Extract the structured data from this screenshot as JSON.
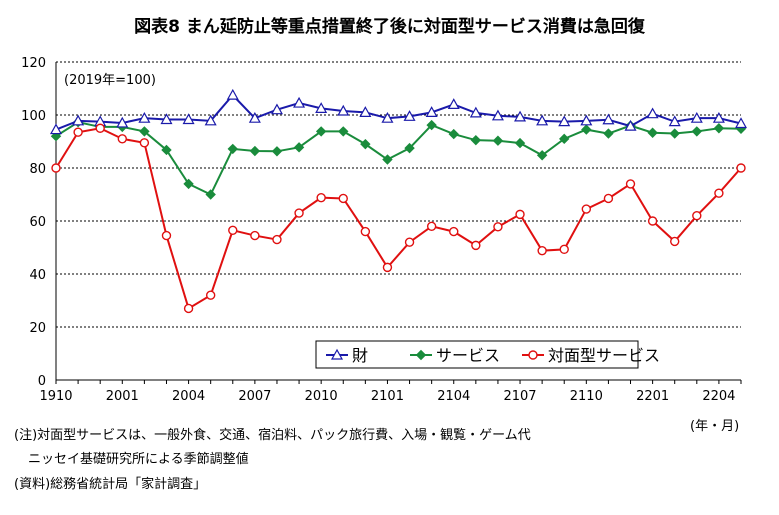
{
  "chart_data": {
    "type": "line",
    "title": "図表8 まん延防止等重点措置終了後に対面型サービス消費は急回復",
    "base_label": "(2019年=100)",
    "x_unit": "(年・月)",
    "ylim": [
      0,
      120
    ],
    "yticks": [
      0,
      20,
      40,
      60,
      80,
      100,
      120
    ],
    "grid": true,
    "legend_position": "bottom-right",
    "x": [
      "1910",
      "1911",
      "1912",
      "2001",
      "2002",
      "2003",
      "2004",
      "2005",
      "2006",
      "2007",
      "2008",
      "2009",
      "2010",
      "2011",
      "2012",
      "2101",
      "2102",
      "2103",
      "2104",
      "2105",
      "2106",
      "2107",
      "2108",
      "2109",
      "2110",
      "2111",
      "2112",
      "2201",
      "2202",
      "2203",
      "2204",
      "2205"
    ],
    "xtick_labels": [
      "1910",
      "2001",
      "2004",
      "2007",
      "2010",
      "2101",
      "2104",
      "2107",
      "2110",
      "2201",
      "2204"
    ],
    "series": [
      {
        "name": "財",
        "color": "#1a1aaa",
        "marker": "triangle",
        "values": [
          94.5,
          97.8,
          97.5,
          97.0,
          98.8,
          98.3,
          98.3,
          97.8,
          107.5,
          98.8,
          102.0,
          104.5,
          102.5,
          101.5,
          101.0,
          98.8,
          99.5,
          101.0,
          104.0,
          100.8,
          99.7,
          99.3,
          97.8,
          97.5,
          97.8,
          98.2,
          95.8,
          100.5,
          97.5,
          98.8,
          98.8,
          96.8
        ]
      },
      {
        "name": "サービス",
        "color": "#1a8c3c",
        "marker": "diamond",
        "values": [
          92.0,
          97.3,
          95.5,
          95.5,
          93.8,
          86.8,
          74.0,
          70.0,
          87.2,
          86.4,
          86.3,
          87.8,
          93.8,
          93.8,
          89.0,
          83.2,
          87.5,
          96.2,
          92.8,
          90.5,
          90.3,
          89.4,
          84.8,
          91.0,
          94.5,
          93.0,
          96.0,
          93.3,
          93.0,
          93.8,
          95.0,
          94.8
        ]
      },
      {
        "name": "対面型サービス",
        "color": "#e01010",
        "marker": "circle",
        "values": [
          80.0,
          93.5,
          95.0,
          91.0,
          89.5,
          54.5,
          27.0,
          32.0,
          56.5,
          54.5,
          53.0,
          63.0,
          68.8,
          68.5,
          56.0,
          42.5,
          52.0,
          58.0,
          56.0,
          50.8,
          57.8,
          62.5,
          48.8,
          49.3,
          64.5,
          68.5,
          74.0,
          60.0,
          52.3,
          62.0,
          70.5,
          80.0
        ]
      }
    ]
  },
  "notes": {
    "line1": "(注)対面型サービスは、一般外食、交通、宿泊料、パック旅行費、入場・観覧・ゲーム代",
    "line2": "ニッセイ基礎研究所による季節調整値",
    "line3": "(資料)総務省統計局「家計調査」"
  }
}
